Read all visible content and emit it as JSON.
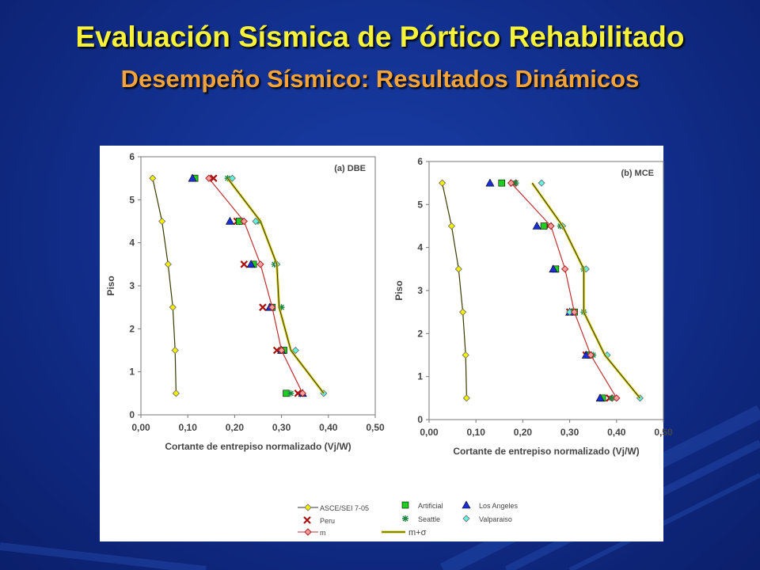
{
  "header": {
    "title": "Evaluación Sísmica de Pórtico Rehabilitado",
    "subtitle": "Desempeño Sísmico: Resultados Dinámicos"
  },
  "colors": {
    "title": "#f6f23a",
    "subtitle": "#f2a33a",
    "plot_background": "#ffffff"
  },
  "chart_data": [
    {
      "type": "line",
      "panel_label": "(a) DBE",
      "xlabel": "Cortante de entrepiso normalizado (Vj/W)",
      "ylabel": "Piso",
      "xlim": [
        0,
        0.5
      ],
      "ylim": [
        0,
        6
      ],
      "xticks": [
        "0,00",
        "0,10",
        "0,20",
        "0,30",
        "0,40",
        "0,50"
      ],
      "yticks": [
        "0",
        "1",
        "2",
        "3",
        "4",
        "5",
        "6"
      ],
      "y": [
        0.5,
        1.5,
        2.5,
        3.5,
        4.5,
        5.5
      ],
      "series": [
        {
          "name": "ASCE/SEI 7-05",
          "values": [
            0.075,
            0.073,
            0.068,
            0.058,
            0.045,
            0.025
          ]
        },
        {
          "name": "Peru",
          "values": [
            0.335,
            0.29,
            0.26,
            0.22,
            0.205,
            0.155
          ]
        },
        {
          "name": "Artificial",
          "values": [
            0.31,
            0.305,
            0.28,
            0.24,
            0.21,
            0.115
          ]
        },
        {
          "name": "Los Angeles",
          "values": [
            0.345,
            0.3,
            0.275,
            0.235,
            0.19,
            0.11
          ]
        },
        {
          "name": "Seattle",
          "values": [
            0.32,
            0.3,
            0.3,
            0.285,
            0.25,
            0.185
          ]
        },
        {
          "name": "Valparaiso",
          "values": [
            0.39,
            0.33,
            0.28,
            0.29,
            0.245,
            0.195
          ]
        },
        {
          "name": "m",
          "values": [
            0.345,
            0.3,
            0.28,
            0.255,
            0.22,
            0.145
          ]
        },
        {
          "name": "m+σ",
          "values": [
            0.39,
            0.32,
            0.295,
            0.29,
            0.255,
            0.185
          ]
        }
      ]
    },
    {
      "type": "line",
      "panel_label": "(b) MCE",
      "xlabel": "Cortante de entrepiso normalizado (Vj/W)",
      "ylabel": "Piso",
      "xlim": [
        0,
        0.5
      ],
      "ylim": [
        0,
        6
      ],
      "xticks": [
        "0,00",
        "0,10",
        "0,20",
        "0,30",
        "0,40",
        "0,50"
      ],
      "yticks": [
        "0",
        "1",
        "2",
        "3",
        "4",
        "5",
        "6"
      ],
      "y": [
        0.5,
        1.5,
        2.5,
        3.5,
        4.5,
        5.5
      ],
      "series": [
        {
          "name": "ASCE/SEI 7-05",
          "values": [
            0.08,
            0.078,
            0.072,
            0.063,
            0.048,
            0.028
          ]
        },
        {
          "name": "Peru",
          "values": [
            0.385,
            0.335,
            0.3,
            0.27,
            0.255,
            0.18
          ]
        },
        {
          "name": "Artificial",
          "values": [
            0.37,
            0.34,
            0.31,
            0.27,
            0.245,
            0.155
          ]
        },
        {
          "name": "Los Angeles",
          "values": [
            0.365,
            0.335,
            0.3,
            0.265,
            0.23,
            0.13
          ]
        },
        {
          "name": "Seattle",
          "values": [
            0.39,
            0.35,
            0.33,
            0.33,
            0.28,
            0.185
          ]
        },
        {
          "name": "Valparaiso",
          "values": [
            0.45,
            0.38,
            0.3,
            0.335,
            0.285,
            0.24
          ]
        },
        {
          "name": "m",
          "values": [
            0.4,
            0.345,
            0.31,
            0.29,
            0.26,
            0.175
          ]
        },
        {
          "name": "m+σ",
          "values": [
            0.45,
            0.375,
            0.33,
            0.33,
            0.285,
            0.22
          ]
        }
      ]
    }
  ],
  "legend": {
    "items": [
      {
        "label": "ASCE/SEI 7-05",
        "symbol": "diamond-line",
        "color": "#f4ee00",
        "edge": "#000000"
      },
      {
        "label": "Artificial",
        "symbol": "square",
        "color": "#22cc22",
        "edge": "#000000"
      },
      {
        "label": "Los Angeles",
        "symbol": "triangle",
        "color": "#1a2fd8",
        "edge": "#000000"
      },
      {
        "label": "Peru",
        "symbol": "x",
        "color": "#aa1010",
        "edge": "#000000"
      },
      {
        "label": "Seattle",
        "symbol": "star",
        "color": "#1a8a40",
        "edge": "#000000"
      },
      {
        "label": "Valparaiso",
        "symbol": "diamond",
        "color": "#66f0e0",
        "edge": "#000000"
      },
      {
        "label": "m",
        "symbol": "diamond-line-red",
        "color": "#e05050",
        "edge": "#b02020"
      },
      {
        "label": "m+σ",
        "symbol": "line",
        "color": "#000000",
        "edge": "#000000"
      }
    ]
  }
}
